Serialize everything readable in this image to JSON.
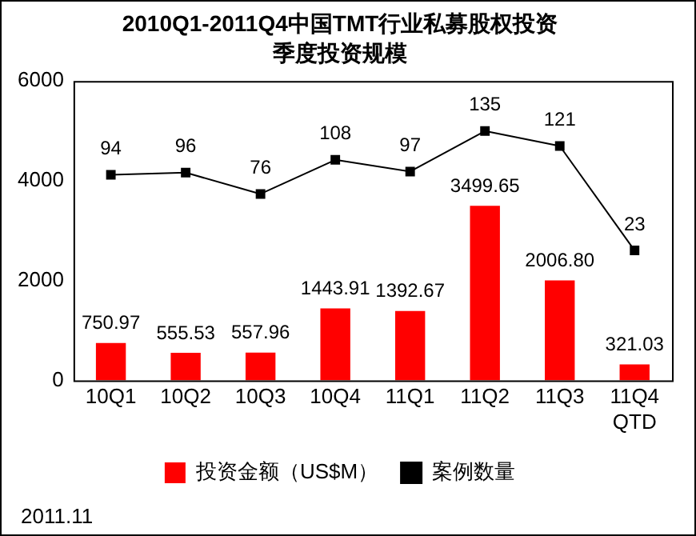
{
  "chart_data": {
    "type": "bar",
    "title": "2010Q1-2011Q4中国TMT行业私募股权投资",
    "subtitle": "季度投资规模",
    "categories": [
      "10Q1",
      "10Q2",
      "10Q3",
      "10Q4",
      "11Q1",
      "11Q2",
      "11Q3",
      "11Q4 QTD"
    ],
    "series": [
      {
        "name": "投资金额（US$M）",
        "color": "#ff0000",
        "values": [
          750.97,
          555.53,
          557.96,
          1443.91,
          1392.67,
          3499.65,
          2006.8,
          321.03
        ],
        "value_labels": [
          "750.97",
          "555.53",
          "557.96",
          "1443.91",
          "1392.67",
          "3499.65",
          "2006.80",
          "321.03"
        ]
      },
      {
        "name": "案例数量",
        "type": "line",
        "axis": "y2",
        "color": "#000000",
        "values": [
          94,
          96,
          76,
          108,
          97,
          135,
          121,
          23
        ]
      }
    ],
    "ylim": [
      0,
      6000
    ],
    "yticks": [
      0,
      2000,
      4000,
      6000
    ],
    "y2lim": [
      -99,
      182
    ],
    "data_labels": true,
    "grid": false,
    "legend": "bottom",
    "marker": "square",
    "line_style": "solid",
    "annotations": [
      "2011.11"
    ]
  }
}
